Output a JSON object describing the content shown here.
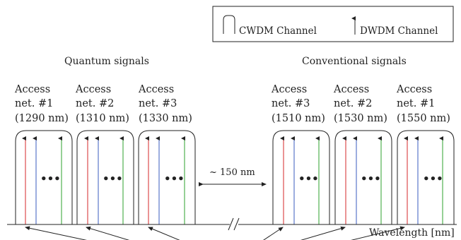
{
  "legend": {
    "cwdm_label": "CWDM Channel",
    "dwdm_label": "DWDM Channel"
  },
  "groups": {
    "quantum_title": "Quantum signals",
    "conventional_title": "Conventional signals"
  },
  "access_nets": [
    {
      "line1": "Access",
      "line2": "net. #1",
      "line3": "(1290 nm)"
    },
    {
      "line1": "Access",
      "line2": "net. #2",
      "line3": "(1310 nm)"
    },
    {
      "line1": "Access",
      "line2": "net. #3",
      "line3": "(1330 nm)"
    },
    {
      "line1": "Access",
      "line2": "net. #3",
      "line3": "(1510 nm)"
    },
    {
      "line1": "Access",
      "line2": "net. #2",
      "line3": "(1530 nm)"
    },
    {
      "line1": "Access",
      "line2": "net. #1",
      "line3": "(1550 nm)"
    }
  ],
  "channel_dots": "•••",
  "gap_label": "~ 150 nm",
  "axis": {
    "label": "Wavelength [nm]"
  },
  "colors": {
    "red": "#d62728",
    "blue": "#3a5bbf",
    "green": "#2ca02c",
    "stroke": "#222222"
  }
}
